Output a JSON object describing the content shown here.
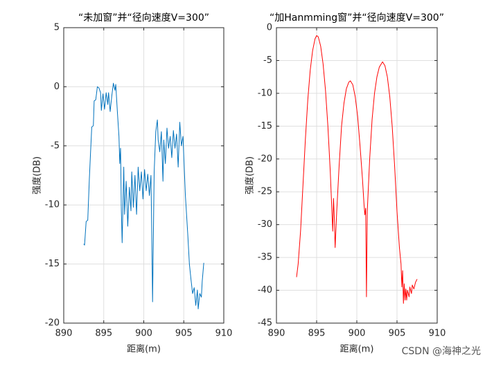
{
  "chart_data": [
    {
      "type": "line",
      "title": "“未加窗”并“径向速度V=300”",
      "xlabel": "距离(m)",
      "ylabel": "强度(DB)",
      "xlim": [
        890,
        910
      ],
      "xticks": [
        890,
        895,
        900,
        905,
        910
      ],
      "ylim": [
        -20,
        5
      ],
      "yticks": [
        -20,
        -15,
        -10,
        -5,
        0,
        5
      ],
      "grid": true,
      "color": "#0072bd",
      "x": [
        892.5,
        892.6,
        892.8,
        893.0,
        893.2,
        893.3,
        893.5,
        893.7,
        893.8,
        894.0,
        894.2,
        894.4,
        894.6,
        894.7,
        894.9,
        895.1,
        895.3,
        895.5,
        895.6,
        895.8,
        896.0,
        896.2,
        896.4,
        896.5,
        896.7,
        896.9,
        897.0,
        897.1,
        897.2,
        897.3,
        897.5,
        897.6,
        897.8,
        898.0,
        898.2,
        898.4,
        898.5,
        898.7,
        898.9,
        899.1,
        899.3,
        899.5,
        899.7,
        899.9,
        900.1,
        900.3,
        900.5,
        900.7,
        900.9,
        901.0,
        901.1,
        901.3,
        901.5,
        901.7,
        901.8,
        902.0,
        902.2,
        902.4,
        902.5,
        902.7,
        902.9,
        903.1,
        903.3,
        903.5,
        903.7,
        903.9,
        904.1,
        904.3,
        904.5,
        904.7,
        904.9,
        905.2,
        905.5,
        905.7,
        905.9,
        906.1,
        906.3,
        906.5,
        906.7,
        906.8,
        907.0,
        907.2,
        907.3,
        907.5
      ],
      "values": [
        -13.3,
        -13.4,
        -11.4,
        -11.3,
        -7.8,
        -6.3,
        -3.4,
        -3.3,
        -1.2,
        -1.1,
        0,
        -0.1,
        -0.5,
        -2,
        -0.6,
        -1.9,
        -0.5,
        -1.5,
        -0.5,
        -2.1,
        -0.8,
        0.3,
        -0.3,
        0.2,
        -2.1,
        -4.2,
        -6.5,
        -5.2,
        -10.5,
        -13.2,
        -6.8,
        -10.8,
        -8,
        -11.8,
        -8.5,
        -10.5,
        -7.2,
        -10.2,
        -7.5,
        -10.8,
        -6.8,
        -8.8,
        -7.2,
        -9.5,
        -7.0,
        -8.8,
        -7.4,
        -9.2,
        -7.5,
        -12.5,
        -18.2,
        -7.2,
        -3.8,
        -2.8,
        -4.5,
        -5.5,
        -3.8,
        -8,
        -4.5,
        -6.5,
        -3.5,
        -5.2,
        -4.2,
        -6.0,
        -3.7,
        -5.2,
        -4.0,
        -6.8,
        -3.0,
        -5.0,
        -4.2,
        -9.2,
        -12.5,
        -15,
        -16.3,
        -17.5,
        -17,
        -18.5,
        -17.2,
        -18.8,
        -17.5,
        -17.8,
        -16.5,
        -14.9
      ]
    },
    {
      "type": "line",
      "title": "“加Hanmming窗”并“径向速度V=300”",
      "xlabel": "距离(m)",
      "ylabel": "强度(DB)",
      "xlim": [
        890,
        910
      ],
      "xticks": [
        890,
        895,
        900,
        905,
        910
      ],
      "ylim": [
        -45,
        0
      ],
      "yticks": [
        -45,
        -40,
        -35,
        -30,
        -25,
        -20,
        -15,
        -10,
        -5,
        0
      ],
      "grid": true,
      "color": "#ff0000",
      "x": [
        892.5,
        892.7,
        893.0,
        893.3,
        893.6,
        893.9,
        894.2,
        894.5,
        894.8,
        895.0,
        895.2,
        895.5,
        895.8,
        896.1,
        896.4,
        896.7,
        896.9,
        897.0,
        897.1,
        897.2,
        897.3,
        897.5,
        897.8,
        898.1,
        898.4,
        898.7,
        899.0,
        899.2,
        899.5,
        899.8,
        900.1,
        900.4,
        900.7,
        900.9,
        901.0,
        901.1,
        901.2,
        901.3,
        901.6,
        901.9,
        902.2,
        902.5,
        902.8,
        903.2,
        903.5,
        903.8,
        904.1,
        904.4,
        904.7,
        905.0,
        905.3,
        905.5,
        905.6,
        905.7,
        905.8,
        905.9,
        906.0,
        906.1,
        906.2,
        906.3,
        906.5,
        906.6,
        906.8,
        906.9,
        907.1,
        907.3,
        907.5
      ],
      "values": [
        -38,
        -36,
        -31,
        -24,
        -17,
        -11,
        -6.5,
        -3.5,
        -1.7,
        -1.2,
        -1.4,
        -2.8,
        -5.5,
        -9.5,
        -15,
        -22,
        -28,
        -31,
        -26,
        -29,
        -33.5,
        -28,
        -21,
        -15,
        -11.5,
        -9.3,
        -8.3,
        -8.1,
        -8.7,
        -10.5,
        -13.5,
        -18,
        -23,
        -27,
        -28.5,
        -27.5,
        -41,
        -28,
        -20,
        -14,
        -10,
        -7.5,
        -6,
        -5.2,
        -5.8,
        -7.5,
        -10.5,
        -15,
        -21,
        -28,
        -33.5,
        -36,
        -39.5,
        -37,
        -42,
        -39,
        -41.5,
        -39.8,
        -41.5,
        -40,
        -41,
        -39.5,
        -40.5,
        -39.2,
        -39.8,
        -38.8,
        -38.3
      ]
    }
  ],
  "watermark": "CSDN @海神之光"
}
